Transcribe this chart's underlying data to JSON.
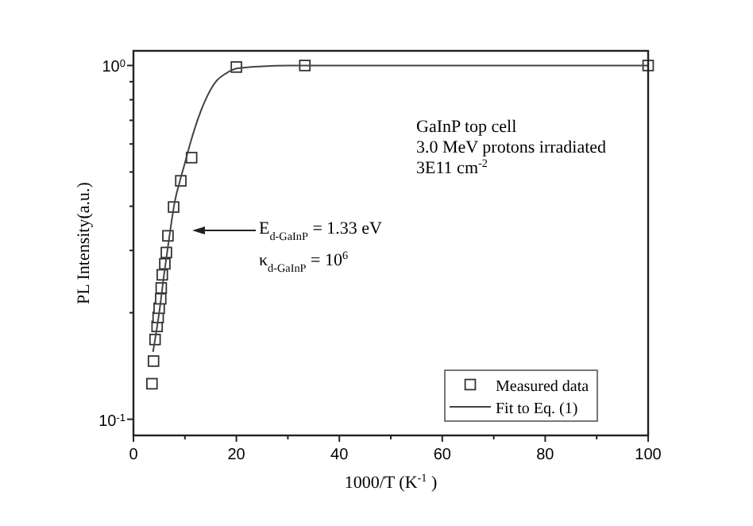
{
  "chart_data": {
    "type": "scatter",
    "xlabel": "1000/T (K$^{-1}$)",
    "ylabel": "PL Intensity(a.u.)",
    "log": "y",
    "xlim": [
      0,
      100
    ],
    "ylim": [
      0.09,
      1.1
    ],
    "xticks": [
      0,
      {
        "value": 10,
        "label": null
      },
      20,
      {
        "value": 30,
        "label": null
      },
      40,
      {
        "value": 50,
        "label": null
      },
      60,
      {
        "value": 70,
        "label": null
      },
      80,
      {
        "value": 90,
        "label": null
      },
      100
    ],
    "yticks": [
      {
        "value": 0.1,
        "label": "10$^{-1}$"
      },
      {
        "value": 0.2,
        "label": null
      },
      {
        "value": 0.3,
        "label": null
      },
      {
        "value": 0.4,
        "label": null
      },
      {
        "value": 0.5,
        "label": null
      },
      {
        "value": 0.6,
        "label": null
      },
      {
        "value": 0.7,
        "label": null
      },
      {
        "value": 0.8,
        "label": null
      },
      {
        "value": 0.9,
        "label": null
      },
      {
        "value": 1,
        "label": "10$^{0}$"
      }
    ],
    "grid": false,
    "legend": "bottom right",
    "annotations": [
      "GaInP top cell",
      "3.0 MeV protons irradiated",
      "3E11 cm$^{-2}$",
      "E$_{d-GaInP}$ = 1.33 eV",
      "κ$_{d-GaInP}$ = 10$^{6}$"
    ],
    "series": [
      {
        "name": "Measured data",
        "marker": "square",
        "color": "#333333",
        "x": [
          3.6,
          3.9,
          4.2,
          4.6,
          4.8,
          5.0,
          5.3,
          5.4,
          5.6,
          6.1,
          6.4,
          6.7,
          7.8,
          9.2,
          11.3,
          20,
          33.3,
          100
        ],
        "values": [
          0.126,
          0.146,
          0.168,
          0.183,
          0.194,
          0.206,
          0.219,
          0.235,
          0.256,
          0.275,
          0.296,
          0.33,
          0.398,
          0.472,
          0.549,
          0.99,
          1.0,
          1.0
        ]
      },
      {
        "name": "Fit to Eq. (1)",
        "type": "line",
        "marker": "none",
        "line_style": "solid",
        "color": "#444444",
        "x": [
          3.8,
          5,
          6,
          7,
          8,
          9,
          10,
          11,
          12,
          14,
          16,
          18,
          20,
          25,
          30,
          100
        ],
        "values": [
          0.155,
          0.2,
          0.26,
          0.33,
          0.41,
          0.47,
          0.53,
          0.6,
          0.67,
          0.8,
          0.9,
          0.95,
          0.98,
          0.995,
          1,
          1
        ]
      }
    ]
  }
}
